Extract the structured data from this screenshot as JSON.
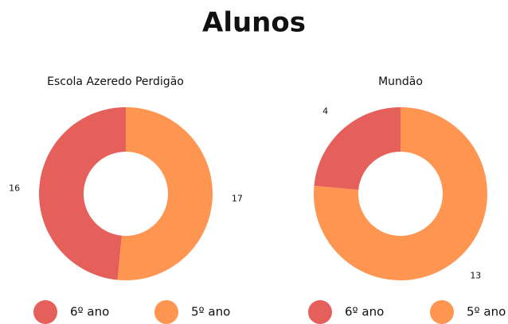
{
  "title": "Alunos",
  "chart_data": [
    {
      "type": "pie",
      "title": "Escola Azeredo  Perdigão",
      "categories": [
        "6º ano",
        "5º ano"
      ],
      "values": [
        16,
        17
      ],
      "colors": [
        "#e5605a",
        "#fe9550"
      ]
    },
    {
      "type": "pie",
      "title": "Mundão",
      "categories": [
        "6º ano",
        "5º ano"
      ],
      "values": [
        4,
        13
      ],
      "colors": [
        "#e5605a",
        "#fe9550"
      ]
    }
  ]
}
